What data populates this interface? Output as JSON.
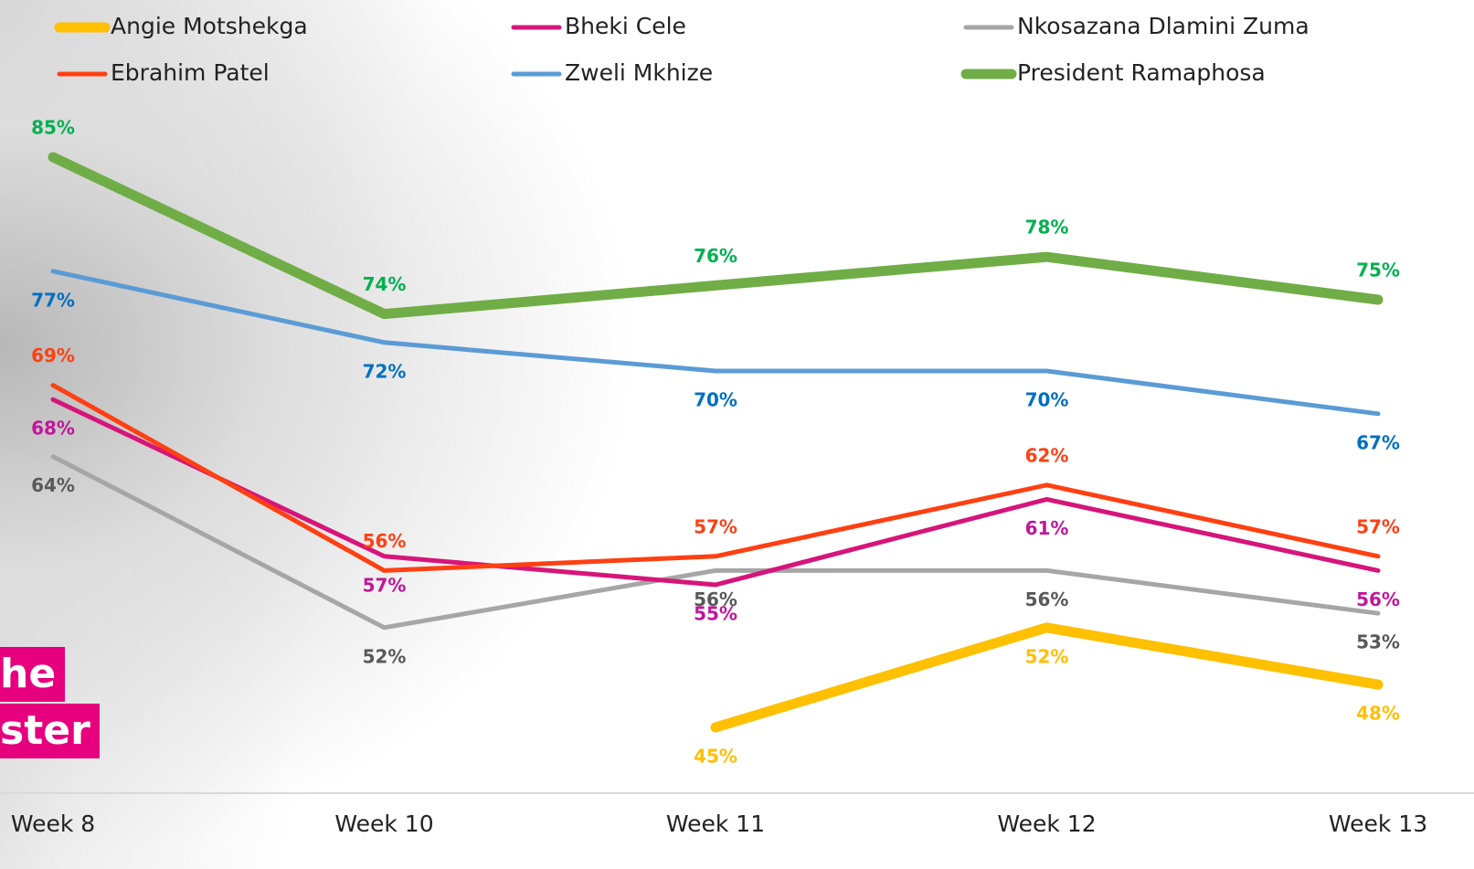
{
  "chart_data": {
    "type": "line",
    "categories": [
      "Week 8",
      "Week 10",
      "Week 11",
      "Week 12",
      "Week 13"
    ],
    "ylim": [
      40,
      90
    ],
    "annotations": [
      "he",
      "ster"
    ],
    "series": [
      {
        "name": "Angie Motshekga",
        "color": "#FFC000",
        "label_color": "#FFC000",
        "width": 11,
        "values": [
          null,
          null,
          45,
          52,
          48
        ],
        "value_labels": [
          null,
          null,
          "45%",
          "52%",
          "48%"
        ]
      },
      {
        "name": "Bheki Cele",
        "color": "#D6157A",
        "label_color": "#C0179A",
        "width": 5,
        "values": [
          68,
          57,
          55,
          61,
          56
        ],
        "value_labels": [
          "68%",
          "57%",
          "55%",
          "61%",
          "56%"
        ]
      },
      {
        "name": "Nkosazana Dlamini Zuma",
        "color": "#A6A6A6",
        "label_color": "#595959",
        "width": 5,
        "values": [
          64,
          52,
          56,
          56,
          53
        ],
        "value_labels": [
          "64%",
          "52%",
          "56%",
          "56%",
          "53%"
        ]
      },
      {
        "name": "Ebrahim Patel",
        "color": "#FF4013",
        "label_color": "#FF4013",
        "width": 5,
        "values": [
          69,
          56,
          57,
          62,
          57
        ],
        "value_labels": [
          "69%",
          "56%",
          "57%",
          "62%",
          "57%"
        ]
      },
      {
        "name": "Zweli Mkhize",
        "color": "#5B9BD5",
        "label_color": "#0070C0",
        "width": 5,
        "values": [
          77,
          72,
          70,
          70,
          67
        ],
        "value_labels": [
          "77%",
          "72%",
          "70%",
          "70%",
          "67%"
        ]
      },
      {
        "name": "President Ramaphosa",
        "color": "#70AD47",
        "label_color": "#00B050",
        "width": 11,
        "values": [
          85,
          74,
          76,
          78,
          75
        ],
        "value_labels": [
          "85%",
          "74%",
          "76%",
          "78%",
          "75%"
        ]
      }
    ]
  }
}
